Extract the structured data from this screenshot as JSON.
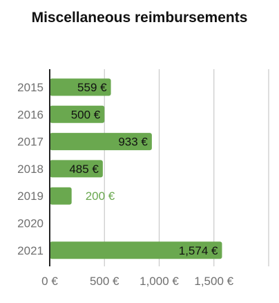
{
  "chart_data": {
    "type": "bar",
    "orientation": "horizontal",
    "title": "Miscellaneous reimbursements",
    "categories": [
      "2015",
      "2016",
      "2017",
      "2018",
      "2019",
      "2020",
      "2021"
    ],
    "values": [
      559,
      500,
      933,
      485,
      200,
      null,
      1574
    ],
    "value_labels": [
      "559 €",
      "500 €",
      "933 €",
      "485 €",
      "200 €",
      "",
      "1,574 €"
    ],
    "xlim": [
      0,
      2000
    ],
    "xticks": [
      0,
      500,
      1000,
      1500,
      2000
    ],
    "xtick_labels": [
      "0 €",
      "500 €",
      "1,000 €",
      "1,500 €",
      ""
    ],
    "xlabel": "",
    "ylabel": "",
    "grid": "vertical",
    "legend": "none",
    "colors": {
      "bar": "#6aa84f",
      "label_inside": "#111111",
      "label_outside": "#6aa84f",
      "grid": "#c8c8c8",
      "axis": "#222222",
      "tick_text": "#6f6f6f"
    }
  }
}
